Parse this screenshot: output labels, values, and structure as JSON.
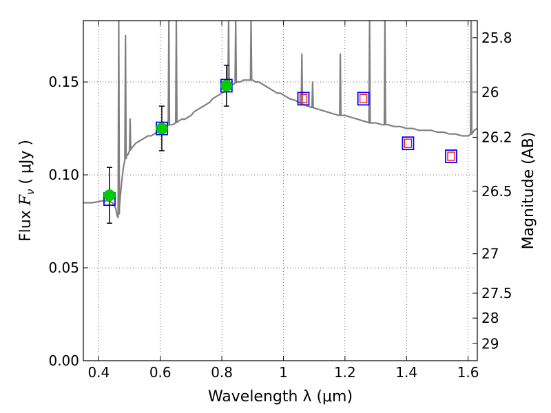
{
  "chart_data": {
    "type": "scatter",
    "title": "",
    "xlabel": "Wavelength  λ (μm)",
    "ylabel": "Flux  F_ν  ( μJy )",
    "ylabel_parts": {
      "prefix": "Flux  ",
      "symbol": "F",
      "subscript": "ν",
      "suffix": "  ( μJy )"
    },
    "ylabel_right": "Magnitude (AB)",
    "xlim": [
      0.35,
      1.63
    ],
    "ylim": [
      0.0,
      0.183
    ],
    "grid": true,
    "x_ticks": [
      {
        "value": 0.4,
        "label": "0.4"
      },
      {
        "value": 0.6,
        "label": "0.6"
      },
      {
        "value": 0.8,
        "label": "0.8"
      },
      {
        "value": 1.0,
        "label": "1"
      },
      {
        "value": 1.2,
        "label": "1.2"
      },
      {
        "value": 1.4,
        "label": "1.4"
      },
      {
        "value": 1.6,
        "label": "1.6"
      }
    ],
    "y_ticks": [
      {
        "value": 0.0,
        "label": "0.00"
      },
      {
        "value": 0.05,
        "label": "0.05"
      },
      {
        "value": 0.1,
        "label": "0.10"
      },
      {
        "value": 0.15,
        "label": "0.15"
      }
    ],
    "y_right_ticks": [
      {
        "mag": 25.8,
        "label": "25.8"
      },
      {
        "mag": 26.0,
        "label": "26"
      },
      {
        "mag": 26.2,
        "label": "26.2"
      },
      {
        "mag": 26.5,
        "label": "26.5"
      },
      {
        "mag": 27.0,
        "label": "27"
      },
      {
        "mag": 27.5,
        "label": "27.5"
      },
      {
        "mag": 28.0,
        "label": "28"
      },
      {
        "mag": 29.0,
        "label": "29"
      }
    ],
    "series": [
      {
        "name": "model_spectrum",
        "style": "line",
        "color": "#808080",
        "x": [
          0.35,
          0.38,
          0.41,
          0.43,
          0.445,
          0.455,
          0.46,
          0.463,
          0.466,
          0.47,
          0.475,
          0.48,
          0.485,
          0.49,
          0.495,
          0.5,
          0.505,
          0.51,
          0.52,
          0.53,
          0.54,
          0.55,
          0.56,
          0.57,
          0.58,
          0.59,
          0.6,
          0.61,
          0.62,
          0.63,
          0.64,
          0.65,
          0.66,
          0.67,
          0.68,
          0.69,
          0.7,
          0.71,
          0.72,
          0.73,
          0.74,
          0.75,
          0.76,
          0.77,
          0.78,
          0.79,
          0.8,
          0.81,
          0.82,
          0.83,
          0.84,
          0.85,
          0.86,
          0.87,
          0.88,
          0.89,
          0.9,
          0.91,
          0.92,
          0.93,
          0.94,
          0.95,
          0.96,
          0.97,
          0.98,
          0.99,
          1.0,
          1.02,
          1.04,
          1.06,
          1.08,
          1.1,
          1.12,
          1.14,
          1.16,
          1.18,
          1.2,
          1.22,
          1.24,
          1.26,
          1.28,
          1.3,
          1.32,
          1.34,
          1.36,
          1.38,
          1.4,
          1.42,
          1.44,
          1.46,
          1.48,
          1.5,
          1.52,
          1.54,
          1.56,
          1.58,
          1.6,
          1.61,
          1.62,
          1.63
        ],
        "y": [
          0.085,
          0.085,
          0.086,
          0.086,
          0.085,
          0.082,
          0.078,
          0.077,
          0.08,
          0.088,
          0.097,
          0.104,
          0.108,
          0.11,
          0.111,
          0.113,
          0.114,
          0.115,
          0.117,
          0.118,
          0.119,
          0.12,
          0.121,
          0.121,
          0.122,
          0.123,
          0.124,
          0.125,
          0.126,
          0.127,
          0.127,
          0.128,
          0.129,
          0.13,
          0.13,
          0.131,
          0.132,
          0.134,
          0.135,
          0.136,
          0.137,
          0.138,
          0.139,
          0.141,
          0.142,
          0.143,
          0.144,
          0.145,
          0.147,
          0.148,
          0.149,
          0.15,
          0.15,
          0.151,
          0.151,
          0.151,
          0.151,
          0.15,
          0.15,
          0.149,
          0.148,
          0.147,
          0.146,
          0.145,
          0.144,
          0.144,
          0.143,
          0.141,
          0.14,
          0.138,
          0.137,
          0.136,
          0.135,
          0.134,
          0.133,
          0.132,
          0.132,
          0.131,
          0.13,
          0.129,
          0.128,
          0.128,
          0.127,
          0.127,
          0.126,
          0.126,
          0.125,
          0.125,
          0.124,
          0.124,
          0.124,
          0.123,
          0.123,
          0.122,
          0.122,
          0.121,
          0.121,
          0.122,
          0.124,
          0.125
        ],
        "emission_lines": [
          {
            "x": 0.465,
            "top": 0.183
          },
          {
            "x": 0.487,
            "top": 0.175
          },
          {
            "x": 0.502,
            "top": 0.13
          },
          {
            "x": 0.628,
            "top": 0.183
          },
          {
            "x": 0.652,
            "top": 0.183
          },
          {
            "x": 0.822,
            "top": 0.183
          },
          {
            "x": 0.845,
            "top": 0.183
          },
          {
            "x": 0.895,
            "top": 0.183
          },
          {
            "x": 1.06,
            "top": 0.165
          },
          {
            "x": 1.095,
            "top": 0.15
          },
          {
            "x": 1.185,
            "top": 0.165
          },
          {
            "x": 1.28,
            "top": 0.183
          },
          {
            "x": 1.33,
            "top": 0.183
          },
          {
            "x": 1.61,
            "top": 0.183
          }
        ]
      },
      {
        "name": "photometry_detections",
        "style": "marker",
        "marker": "circle",
        "color": "#00cc00",
        "x": [
          0.435,
          0.605,
          0.815
        ],
        "y": [
          0.089,
          0.125,
          0.148
        ],
        "yerr": [
          0.015,
          0.012,
          0.011
        ]
      },
      {
        "name": "model_band_fluxes",
        "style": "marker",
        "marker": "open-square",
        "color": "#0000ff",
        "x": [
          0.435,
          0.605,
          0.815,
          1.065,
          1.26,
          1.405,
          1.545
        ],
        "y": [
          0.087,
          0.125,
          0.148,
          0.141,
          0.141,
          0.117,
          0.11
        ]
      },
      {
        "name": "upper_limits_or_predictions",
        "style": "marker",
        "marker": "small-open-square",
        "color": "#ff0000",
        "x": [
          1.065,
          1.26,
          1.405,
          1.545
        ],
        "y": [
          0.141,
          0.141,
          0.117,
          0.11
        ]
      }
    ]
  }
}
